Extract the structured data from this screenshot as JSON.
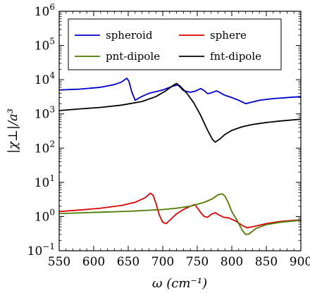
{
  "chart_data": {
    "type": "line",
    "title": "",
    "xlabel": "ω (cm⁻¹)",
    "ylabel": "|χ⊥|/a³",
    "xlim": [
      550,
      900
    ],
    "ylim": [
      0.1,
      1000000
    ],
    "yscale": "log",
    "grid": false,
    "legend_position": "top",
    "x_ticks": [
      550,
      600,
      650,
      700,
      750,
      800,
      850,
      900
    ],
    "y_ticks": [
      {
        "value": 0.1,
        "base": "10",
        "exp": "−1"
      },
      {
        "value": 1,
        "base": "10",
        "exp": "0"
      },
      {
        "value": 10,
        "base": "10",
        "exp": "1"
      },
      {
        "value": 100,
        "base": "10",
        "exp": "2"
      },
      {
        "value": 1000,
        "base": "10",
        "exp": "3"
      },
      {
        "value": 10000,
        "base": "10",
        "exp": "4"
      },
      {
        "value": 100000,
        "base": "10",
        "exp": "5"
      },
      {
        "value": 1000000,
        "base": "10",
        "exp": "6"
      }
    ],
    "series": [
      {
        "name": "spheroid",
        "color": "#0000cc",
        "points": [
          [
            550,
            5000
          ],
          [
            580,
            5300
          ],
          [
            610,
            6000
          ],
          [
            630,
            7200
          ],
          [
            640,
            8500
          ],
          [
            648,
            11000
          ],
          [
            651,
            9000
          ],
          [
            655,
            4500
          ],
          [
            660,
            2500
          ],
          [
            668,
            3100
          ],
          [
            680,
            4000
          ],
          [
            700,
            5000
          ],
          [
            715,
            6500
          ],
          [
            722,
            7000
          ],
          [
            730,
            4800
          ],
          [
            740,
            4300
          ],
          [
            748,
            4700
          ],
          [
            755,
            5500
          ],
          [
            760,
            4800
          ],
          [
            765,
            3900
          ],
          [
            770,
            4100
          ],
          [
            778,
            4700
          ],
          [
            782,
            4300
          ],
          [
            790,
            3500
          ],
          [
            800,
            3000
          ],
          [
            810,
            2500
          ],
          [
            820,
            2000
          ],
          [
            825,
            2100
          ],
          [
            840,
            2500
          ],
          [
            860,
            2800
          ],
          [
            880,
            3000
          ],
          [
            900,
            3200
          ]
        ]
      },
      {
        "name": "sphere",
        "color": "#dd0000",
        "points": [
          [
            550,
            1.4
          ],
          [
            580,
            1.55
          ],
          [
            610,
            1.75
          ],
          [
            640,
            2.1
          ],
          [
            660,
            2.6
          ],
          [
            675,
            3.6
          ],
          [
            682,
            4.8
          ],
          [
            686,
            4.2
          ],
          [
            690,
            2.5
          ],
          [
            695,
            1.1
          ],
          [
            700,
            0.68
          ],
          [
            705,
            0.62
          ],
          [
            712,
            0.85
          ],
          [
            720,
            1.2
          ],
          [
            730,
            1.6
          ],
          [
            740,
            2.0
          ],
          [
            746,
            2.25
          ],
          [
            750,
            1.8
          ],
          [
            755,
            1.3
          ],
          [
            760,
            1.0
          ],
          [
            765,
            0.95
          ],
          [
            770,
            1.15
          ],
          [
            776,
            1.3
          ],
          [
            780,
            1.15
          ],
          [
            788,
            0.95
          ],
          [
            795,
            0.92
          ],
          [
            805,
            0.75
          ],
          [
            815,
            0.55
          ],
          [
            822,
            0.47
          ],
          [
            830,
            0.5
          ],
          [
            850,
            0.62
          ],
          [
            870,
            0.72
          ],
          [
            900,
            0.8
          ]
        ]
      },
      {
        "name": "pnt-dipole",
        "color": "#4d7a00",
        "points": [
          [
            550,
            1.22
          ],
          [
            600,
            1.32
          ],
          [
            650,
            1.42
          ],
          [
            700,
            1.6
          ],
          [
            720,
            1.75
          ],
          [
            740,
            2.0
          ],
          [
            760,
            2.6
          ],
          [
            772,
            3.3
          ],
          [
            780,
            4.3
          ],
          [
            786,
            4.6
          ],
          [
            790,
            4.0
          ],
          [
            795,
            2.5
          ],
          [
            800,
            1.4
          ],
          [
            808,
            0.75
          ],
          [
            815,
            0.4
          ],
          [
            820,
            0.3
          ],
          [
            825,
            0.31
          ],
          [
            835,
            0.45
          ],
          [
            850,
            0.58
          ],
          [
            870,
            0.68
          ],
          [
            900,
            0.78
          ]
        ]
      },
      {
        "name": "fnt-dipole",
        "color": "#000000",
        "points": [
          [
            550,
            1250
          ],
          [
            580,
            1400
          ],
          [
            610,
            1550
          ],
          [
            640,
            1800
          ],
          [
            670,
            2300
          ],
          [
            690,
            3200
          ],
          [
            705,
            4800
          ],
          [
            715,
            6800
          ],
          [
            720,
            7800
          ],
          [
            725,
            6500
          ],
          [
            735,
            4000
          ],
          [
            745,
            2100
          ],
          [
            755,
            900
          ],
          [
            765,
            330
          ],
          [
            772,
            180
          ],
          [
            776,
            150
          ],
          [
            782,
            180
          ],
          [
            790,
            250
          ],
          [
            800,
            330
          ],
          [
            815,
            420
          ],
          [
            830,
            490
          ],
          [
            850,
            560
          ],
          [
            870,
            620
          ],
          [
            900,
            700
          ]
        ]
      }
    ]
  }
}
